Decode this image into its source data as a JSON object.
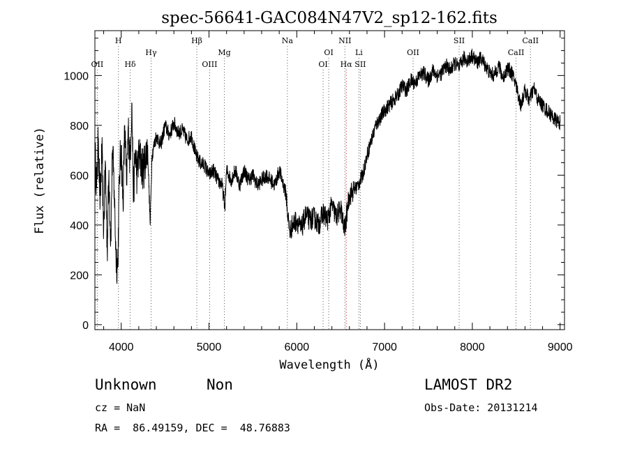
{
  "chart_data": {
    "type": "line",
    "title": "spec-56641-GAC084N47V2_sp12-162.fits",
    "xlabel": "Wavelength (Å)",
    "ylabel": "Flux (relative)",
    "xlim": [
      3700,
      9050
    ],
    "ylim": [
      -20,
      1180
    ],
    "xticks": [
      4000,
      5000,
      6000,
      7000,
      8000,
      9000
    ],
    "yticks": [
      0,
      200,
      400,
      600,
      800,
      1000
    ],
    "grid": false,
    "series": [
      {
        "x": [
          3700,
          3720,
          3740,
          3760,
          3780,
          3800,
          3820,
          3840,
          3860,
          3880,
          3900,
          3920,
          3940,
          3960,
          3980,
          4000,
          4020,
          4040,
          4060,
          4080,
          4100,
          4120,
          4140,
          4160,
          4180,
          4200,
          4250,
          4300,
          4330,
          4350,
          4400,
          4450,
          4500,
          4550,
          4600,
          4650,
          4700,
          4750,
          4800,
          4850,
          4900,
          4950,
          5000,
          5050,
          5100,
          5150,
          5180,
          5200,
          5250,
          5300,
          5350,
          5400,
          5450,
          5500,
          5550,
          5600,
          5650,
          5700,
          5750,
          5800,
          5850,
          5880,
          5900,
          5920,
          5950,
          6000,
          6050,
          6100,
          6150,
          6200,
          6250,
          6300,
          6350,
          6400,
          6450,
          6500,
          6540,
          6560,
          6580,
          6600,
          6650,
          6700,
          6750,
          6800,
          6850,
          6900,
          6950,
          7000,
          7050,
          7100,
          7150,
          7200,
          7250,
          7300,
          7350,
          7400,
          7450,
          7500,
          7550,
          7600,
          7650,
          7700,
          7750,
          7800,
          7850,
          7900,
          7950,
          8000,
          8050,
          8100,
          8150,
          8200,
          8250,
          8300,
          8350,
          8400,
          8450,
          8500,
          8550,
          8600,
          8650,
          8700,
          8750,
          8800,
          8850,
          8900,
          8950,
          9000
        ],
        "y": [
          700,
          550,
          750,
          480,
          700,
          380,
          650,
          300,
          620,
          330,
          700,
          540,
          280,
          230,
          600,
          720,
          480,
          800,
          560,
          780,
          660,
          890,
          520,
          700,
          600,
          680,
          620,
          720,
          400,
          680,
          760,
          720,
          800,
          760,
          810,
          770,
          780,
          740,
          760,
          680,
          650,
          640,
          600,
          620,
          580,
          560,
          470,
          620,
          580,
          620,
          560,
          620,
          580,
          600,
          560,
          580,
          600,
          580,
          560,
          620,
          560,
          520,
          430,
          370,
          400,
          420,
          380,
          440,
          420,
          430,
          400,
          450,
          420,
          480,
          430,
          470,
          380,
          410,
          480,
          520,
          540,
          560,
          600,
          680,
          740,
          800,
          830,
          860,
          880,
          900,
          920,
          960,
          940,
          980,
          970,
          1000,
          1010,
          980,
          1020,
          1000,
          1010,
          1040,
          1020,
          1050,
          1030,
          1070,
          1060,
          1080,
          1050,
          1070,
          1040,
          1010,
          1000,
          1040,
          990,
          1030,
          1010,
          960,
          880,
          940,
          900,
          950,
          900,
          880,
          860,
          840,
          820,
          810
        ]
      }
    ],
    "line_markers": [
      {
        "label": "OII",
        "x": 3727,
        "tier": 3,
        "color": "#555555"
      },
      {
        "label": "H",
        "x": 3968,
        "tier": 1,
        "color": "#555555"
      },
      {
        "label": "Hδ",
        "x": 4102,
        "tier": 3,
        "color": "#555555"
      },
      {
        "label": "Hγ",
        "x": 4340,
        "tier": 2,
        "color": "#555555"
      },
      {
        "label": "Hβ",
        "x": 4861,
        "tier": 1,
        "color": "#555555"
      },
      {
        "label": "OIII",
        "x": 5007,
        "tier": 3,
        "color": "#555555"
      },
      {
        "label": "Mg",
        "x": 5175,
        "tier": 2,
        "color": "#555555"
      },
      {
        "label": "Na",
        "x": 5893,
        "tier": 1,
        "color": "#555555"
      },
      {
        "label": "OI",
        "x": 6300,
        "tier": 3,
        "color": "#555555"
      },
      {
        "label": "OI",
        "x": 6364,
        "tier": 2,
        "color": "#555555"
      },
      {
        "label": "NII",
        "x": 6548,
        "tier": 1,
        "color": "#555555"
      },
      {
        "label": "Hα",
        "x": 6563,
        "tier": 3,
        "color": "#cc0000"
      },
      {
        "label": "Li",
        "x": 6708,
        "tier": 2,
        "color": "#555555"
      },
      {
        "label": "SII",
        "x": 6724,
        "tier": 3,
        "color": "#555555"
      },
      {
        "label": "OII",
        "x": 7325,
        "tier": 2,
        "color": "#555555"
      },
      {
        "label": "SII",
        "x": 7850,
        "tier": 1,
        "color": "#555555"
      },
      {
        "label": "CaII",
        "x": 8498,
        "tier": 2,
        "color": "#555555"
      },
      {
        "label": "CaII",
        "x": 8662,
        "tier": 1,
        "color": "#555555"
      }
    ]
  },
  "info": {
    "class": "Unknown",
    "subclass": "Non",
    "survey": "LAMOST DR2",
    "cz": "cz = NaN",
    "obs_date": "Obs-Date: 20131214",
    "coords": "RA =  86.49159, DEC =  48.76883"
  }
}
